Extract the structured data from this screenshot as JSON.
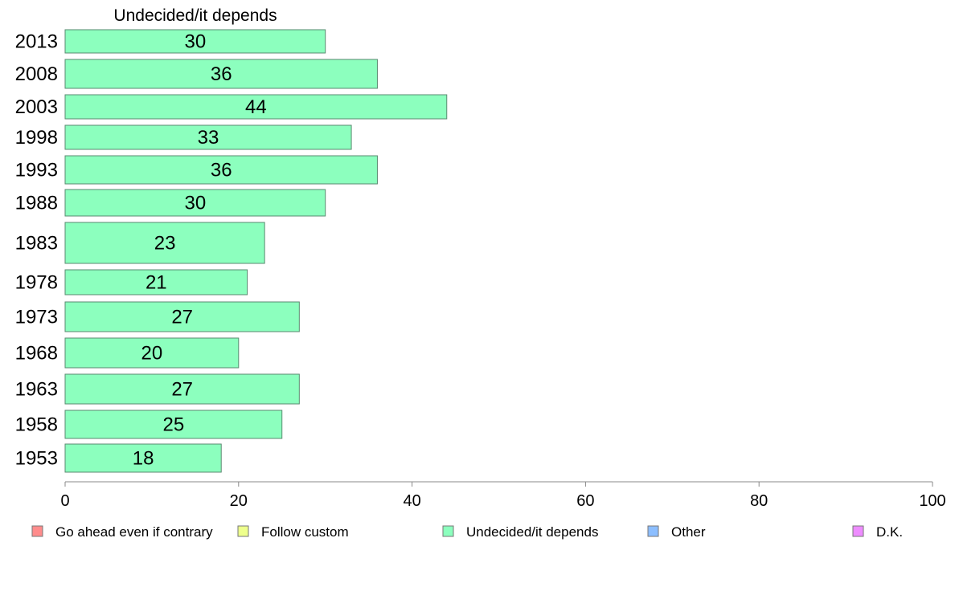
{
  "chart_data": {
    "type": "bar",
    "orientation": "horizontal",
    "title": "Undecided/it depends",
    "categories": [
      "2013",
      "2008",
      "2003",
      "1998",
      "1993",
      "1988",
      "1983",
      "1978",
      "1973",
      "1968",
      "1963",
      "1958",
      "1953"
    ],
    "values": [
      30,
      36,
      44,
      33,
      36,
      30,
      23,
      21,
      27,
      20,
      27,
      25,
      18
    ],
    "xlim": [
      0,
      100
    ],
    "xticks": [
      0,
      20,
      40,
      60,
      80,
      100
    ],
    "grid": false,
    "bar_color": "#8cffbe",
    "legend": {
      "position": "bottom",
      "items": [
        {
          "label": "Go ahead even if contrary",
          "color": "#ff8c8c"
        },
        {
          "label": "Follow custom",
          "color": "#eeff8c"
        },
        {
          "label": "Undecided/it depends",
          "color": "#8cffbe"
        },
        {
          "label": "Other",
          "color": "#8cbeff"
        },
        {
          "label": "D.K.",
          "color": "#ee8cff"
        }
      ]
    }
  }
}
